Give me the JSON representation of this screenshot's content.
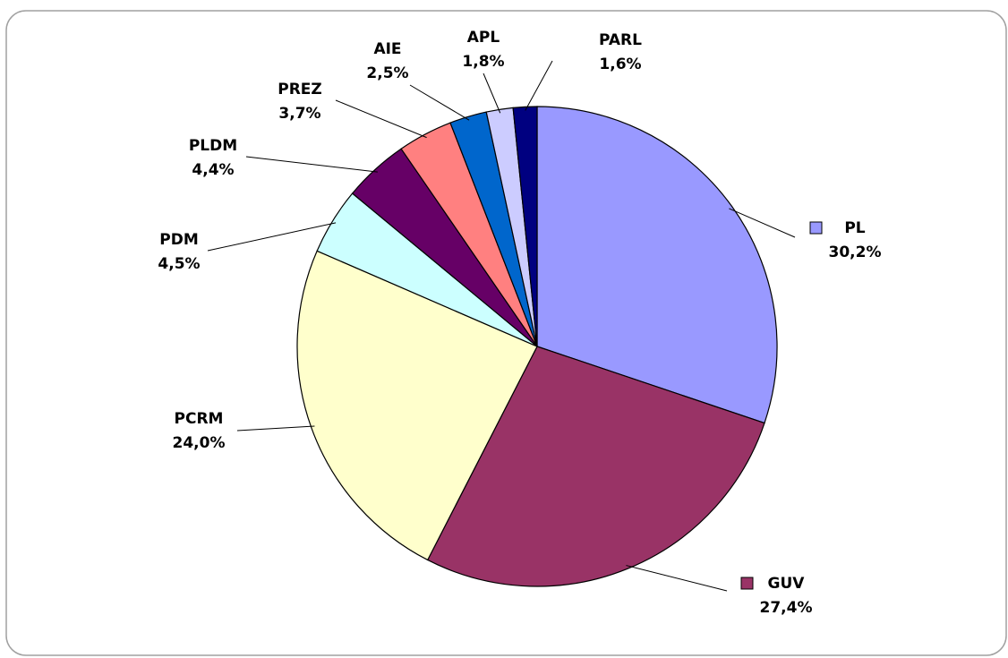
{
  "chart_data": {
    "type": "pie",
    "categories": [
      "PL",
      "GUV",
      "PCRM",
      "PDM",
      "PLDM",
      "PREZ",
      "AIE",
      "APL",
      "PARL"
    ],
    "values": [
      30.2,
      27.4,
      24.0,
      4.5,
      4.4,
      3.7,
      2.5,
      1.8,
      1.6
    ],
    "value_labels": [
      "30,2%",
      "27,4%",
      "24,0%",
      "4,5%",
      "4,4%",
      "3,7%",
      "2,5%",
      "1,8%",
      "1,6%"
    ],
    "colors": [
      "#9999ff",
      "#993366",
      "#ffffcc",
      "#ccffff",
      "#660066",
      "#ff8080",
      "#0066cc",
      "#ccccff",
      "#000080"
    ]
  }
}
